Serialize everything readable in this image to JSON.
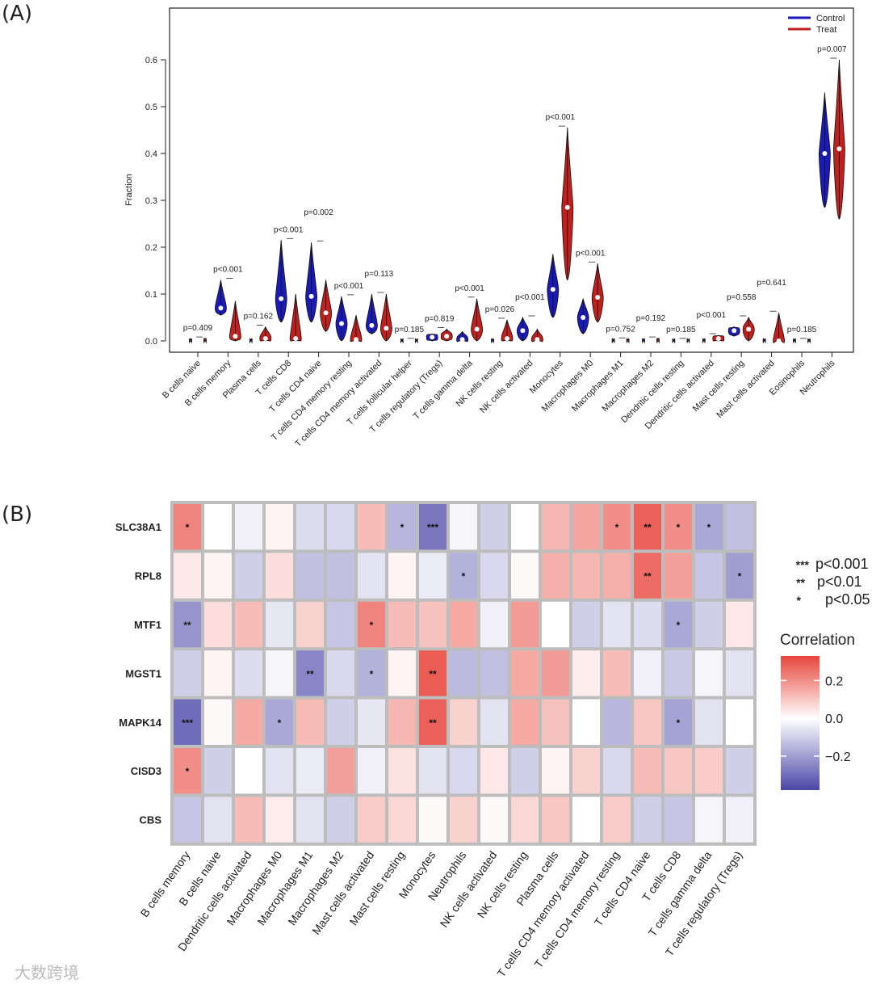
{
  "panel_labels": {
    "a": "(A)",
    "b": "(B)"
  },
  "watermark": "大数跨境",
  "chart_data": [
    {
      "type": "violin",
      "panel": "A",
      "ylabel": "Fraction",
      "ylim": [
        0,
        0.62
      ],
      "yticks": [
        "0.0",
        "0.1",
        "0.2",
        "0.3",
        "0.4",
        "0.5",
        "0.6"
      ],
      "ytick_values": [
        0,
        0.1,
        0.2,
        0.3,
        0.4,
        0.5,
        0.6
      ],
      "legend": {
        "position": "top-right",
        "entries": [
          {
            "name": "Control",
            "color": "#1a1ab8"
          },
          {
            "name": "Treat",
            "color": "#c0201e"
          }
        ]
      },
      "categories": [
        "B cells naive",
        "B cells memory",
        "Plasma cells",
        "T cells CD8",
        "T cells CD4 naive",
        "T cells CD4 memory resting",
        "T cells CD4 memory activated",
        "T cells follicular helper",
        "T cells regulatory (Tregs)",
        "T cells gamma delta",
        "NK cells resting",
        "NK cells activated",
        "Monocytes",
        "Macrophages M0",
        "Macrophages M1",
        "Macrophages M2",
        "Dendritic cells resting",
        "Dendritic cells activated",
        "Mast cells resting",
        "Mast cells activated",
        "Eosinophils",
        "Neutrophils"
      ],
      "p_values": [
        "p=0.409",
        "p<0.001",
        "p=0.162",
        "p<0.001",
        "p=0.002",
        "p<0.001",
        "p=0.113",
        "p=0.185",
        "p=0.819",
        "p<0.001",
        "p=0.026",
        "p<0.001",
        "p<0.001",
        "p<0.001",
        "p=0.752",
        "p=0.192",
        "p=0.185",
        "p<0.001",
        "p=0.558",
        "p=0.641",
        "p=0.185",
        "p=0.007"
      ],
      "series": [
        {
          "name": "Control",
          "median": [
            0,
            0.07,
            0,
            0.09,
            0.095,
            0.037,
            0.033,
            0,
            0.008,
            0.003,
            0,
            0.022,
            0.11,
            0.05,
            0,
            0,
            0,
            0,
            0.022,
            0,
            0,
            0.4
          ],
          "min": [
            0,
            0.055,
            0,
            0.04,
            0.04,
            0,
            0.015,
            0,
            0,
            0,
            0,
            0,
            0.05,
            0.015,
            0,
            0,
            0,
            0,
            0.01,
            0,
            0,
            0.285
          ],
          "max": [
            0.003,
            0.13,
            0.003,
            0.215,
            0.21,
            0.095,
            0.1,
            0.002,
            0.015,
            0.02,
            0.003,
            0.05,
            0.185,
            0.09,
            0.003,
            0.003,
            0.002,
            0.003,
            0.03,
            0.003,
            0.002,
            0.53
          ]
        },
        {
          "name": "Treat",
          "median": [
            0,
            0.01,
            0.005,
            0.005,
            0.06,
            0.003,
            0.027,
            0,
            0.01,
            0.025,
            0.005,
            0.003,
            0.285,
            0.093,
            0,
            0,
            0,
            0.005,
            0.025,
            0,
            0,
            0.41
          ],
          "min": [
            0,
            0,
            0,
            0,
            0.02,
            0,
            0,
            0,
            0,
            0,
            0,
            0,
            0.13,
            0.04,
            0,
            0,
            0,
            0,
            0,
            0,
            0,
            0.26
          ],
          "max": [
            0.005,
            0.085,
            0.03,
            0.1,
            0.13,
            0.055,
            0.1,
            0.002,
            0.025,
            0.09,
            0.045,
            0.025,
            0.455,
            0.165,
            0.003,
            0.005,
            0.002,
            0.012,
            0.05,
            0.06,
            0.002,
            0.6
          ]
        }
      ]
    },
    {
      "type": "heatmap",
      "panel": "B",
      "rows": [
        "SLC38A1",
        "RPL8",
        "MTF1",
        "MGST1",
        "MAPK14",
        "CISD3",
        "CBS"
      ],
      "columns": [
        "B cells memory",
        "B cells naive",
        "Dendritic cells activated",
        "Macrophages M0",
        "Macrophages M1",
        "Macrophages M2",
        "Mast cells activated",
        "Mast cells resting",
        "Monocytes",
        "Neutrophils",
        "NK cells activated",
        "NK cells resting",
        "Plasma cells",
        "T cells CD4 memory activated",
        "T cells CD4 memory resting",
        "T cells CD4 naive",
        "T cells CD8",
        "T cells gamma delta",
        "T cells regulatory (Tregs)"
      ],
      "values": [
        [
          0.22,
          0.0,
          -0.03,
          0.02,
          -0.07,
          -0.08,
          0.12,
          -0.15,
          -0.28,
          -0.02,
          -0.1,
          0.0,
          0.13,
          0.16,
          0.2,
          0.28,
          0.2,
          -0.18,
          -0.13
        ],
        [
          0.04,
          0.02,
          -0.1,
          0.06,
          -0.13,
          -0.13,
          -0.06,
          0.02,
          -0.04,
          -0.16,
          -0.08,
          0.01,
          0.14,
          0.13,
          0.14,
          0.26,
          0.17,
          -0.12,
          -0.2
        ],
        [
          -0.22,
          0.06,
          0.12,
          -0.05,
          0.08,
          -0.12,
          0.22,
          0.12,
          0.11,
          0.15,
          -0.03,
          0.18,
          0.0,
          -0.1,
          -0.06,
          -0.07,
          -0.18,
          -0.1,
          0.04
        ],
        [
          -0.1,
          0.02,
          -0.07,
          -0.02,
          -0.25,
          -0.08,
          -0.16,
          0.02,
          0.29,
          -0.14,
          -0.13,
          0.15,
          0.18,
          0.03,
          0.12,
          -0.03,
          -0.11,
          -0.02,
          -0.06
        ],
        [
          -0.3,
          0.01,
          0.15,
          -0.18,
          0.12,
          -0.1,
          -0.05,
          0.13,
          0.28,
          0.08,
          -0.06,
          0.15,
          0.11,
          0.0,
          -0.15,
          0.1,
          -0.19,
          -0.06,
          0.0
        ],
        [
          0.2,
          -0.1,
          0.0,
          -0.06,
          -0.04,
          0.17,
          -0.03,
          0.05,
          -0.06,
          -0.08,
          0.04,
          -0.1,
          0.02,
          0.08,
          -0.08,
          0.12,
          0.1,
          0.09,
          -0.1
        ],
        [
          -0.12,
          -0.06,
          0.12,
          0.03,
          -0.06,
          -0.1,
          0.09,
          0.07,
          0.01,
          0.08,
          0.01,
          0.07,
          0.1,
          0.0,
          0.09,
          -0.1,
          -0.12,
          -0.02,
          -0.03
        ]
      ],
      "significance": [
        [
          "*",
          "",
          "",
          "",
          "",
          "",
          "",
          "*",
          "***",
          "",
          "",
          "",
          "",
          "",
          "*",
          "**",
          "*",
          "*",
          ""
        ],
        [
          "",
          "",
          "",
          "",
          "",
          "",
          "",
          "",
          "",
          "*",
          "",
          "",
          "",
          "",
          "",
          "**",
          "",
          "",
          "*"
        ],
        [
          "**",
          "",
          "",
          "",
          "",
          "",
          "*",
          "",
          "",
          "",
          "",
          "",
          "",
          "",
          "",
          "",
          "*",
          "",
          ""
        ],
        [
          "",
          "",
          "",
          "",
          "**",
          "",
          "*",
          "",
          "**",
          "",
          "",
          "",
          "",
          "",
          "",
          "",
          "",
          "",
          ""
        ],
        [
          "***",
          "",
          "",
          "*",
          "",
          "",
          "",
          "",
          "**",
          "",
          "",
          "",
          "",
          "",
          "",
          "",
          "*",
          "",
          ""
        ],
        [
          "*",
          "",
          "",
          "",
          "",
          "",
          "",
          "",
          "",
          "",
          "",
          "",
          "",
          "",
          "",
          "",
          "",
          "",
          ""
        ],
        [
          "",
          "",
          "",
          "",
          "",
          "",
          "",
          "",
          "",
          "",
          "",
          "",
          "",
          "",
          "",
          "",
          "",
          "",
          ""
        ]
      ],
      "sig_legend": [
        {
          "stars": "***",
          "label": "p<0.001"
        },
        {
          "stars": "**",
          "label": "p<0.01"
        },
        {
          "stars": "*",
          "label": "p<0.05"
        }
      ],
      "colorbar": {
        "title": "Correlation",
        "ticks": [
          "0.2",
          "0.0",
          "−0.2"
        ],
        "tick_values": [
          0.2,
          0.0,
          -0.2
        ],
        "range": [
          -0.38,
          0.33
        ],
        "low_color": "#4a47a8",
        "mid_color": "#ffffff",
        "high_color": "#e8453c"
      }
    }
  ]
}
